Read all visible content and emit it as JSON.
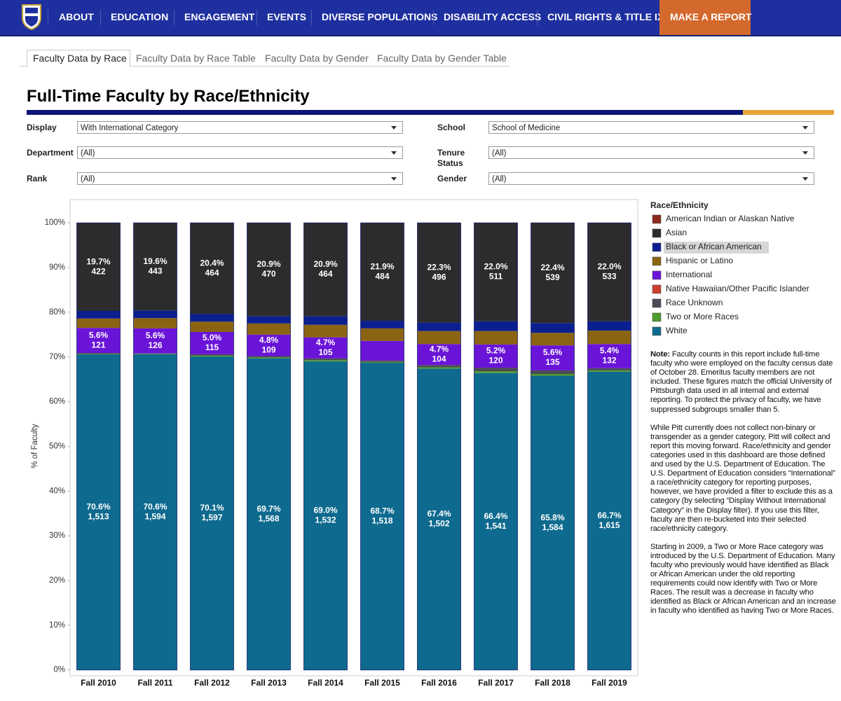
{
  "nav": {
    "items": [
      "ABOUT",
      "EDUCATION",
      "ENGAGEMENT",
      "EVENTS",
      "DIVERSE POPULATIONS",
      "DISABILITY ACCESS",
      "CIVIL RIGHTS & TITLE IX"
    ],
    "cta": "MAKE A REPORT"
  },
  "tabs": [
    "Faculty Data by Race",
    "Faculty Data by Race Table",
    "Faculty Data by Gender",
    "Faculty Data by Gender Table"
  ],
  "header": {
    "title": "Full-Time Faculty by Race/Ethnicity"
  },
  "filters": [
    {
      "label": "Display",
      "value": "With International Category"
    },
    {
      "label": "School",
      "value": "School of Medicine"
    },
    {
      "label": "Department",
      "value": "(All)"
    },
    {
      "label": "Tenure Status",
      "value": "(All)"
    },
    {
      "label": "Rank",
      "value": "(All)"
    },
    {
      "label": "Gender",
      "value": "(All)"
    }
  ],
  "chart_data": {
    "type": "stacked_bar",
    "y_label": "% of Faculty",
    "legend_title": "Race/Ethnicity",
    "categories": [
      "Fall 2010",
      "Fall 2011",
      "Fall 2012",
      "Fall 2013",
      "Fall 2014",
      "Fall 2015",
      "Fall 2016",
      "Fall 2017",
      "Fall 2018",
      "Fall 2019"
    ],
    "ylim": [
      -1.3,
      105.2
    ],
    "yticks": [
      {
        "value": 0,
        "label": "0%"
      },
      {
        "value": 10,
        "label": "10%"
      },
      {
        "value": 20,
        "label": "20%"
      },
      {
        "value": 30,
        "label": "30%"
      },
      {
        "value": 40,
        "label": "40%"
      },
      {
        "value": 50,
        "label": "50%"
      },
      {
        "value": 60,
        "label": "60%"
      },
      {
        "value": 70,
        "label": "70%"
      },
      {
        "value": 80,
        "label": "80%"
      },
      {
        "value": 90,
        "label": "90%"
      },
      {
        "value": 100,
        "label": "100%"
      }
    ],
    "series": [
      {
        "name": "American Indian or Alaskan Native",
        "color": "#8b2a1e",
        "values": [
          0,
          0,
          0,
          0,
          0,
          0,
          0,
          0,
          0,
          0
        ]
      },
      {
        "name": "Asian",
        "color": "#2c2c2e",
        "values": [
          19.7,
          19.6,
          20.4,
          20.9,
          20.9,
          21.9,
          22.3,
          22.0,
          22.4,
          22.0
        ],
        "value_labels": [
          "19.7%",
          "19.6%",
          "20.4%",
          "20.9%",
          "20.9%",
          "21.9%",
          "22.3%",
          "22.0%",
          "22.4%",
          "22.0%"
        ],
        "count_labels": [
          "422",
          "443",
          "464",
          "470",
          "464",
          "484",
          "496",
          "511",
          "539",
          "533"
        ]
      },
      {
        "name": "Black or African American",
        "color": "#0b1f8f",
        "values": [
          1.7,
          1.7,
          1.7,
          1.6,
          1.9,
          1.7,
          1.9,
          2.2,
          2.2,
          2.1
        ]
      },
      {
        "name": "Hispanic or Latino",
        "color": "#8a6412",
        "values": [
          2.1,
          2.3,
          2.3,
          2.5,
          2.8,
          2.8,
          2.9,
          3.0,
          2.8,
          3.0
        ]
      },
      {
        "name": "International",
        "color": "#6a14d8",
        "values": [
          5.6,
          5.6,
          5.0,
          4.8,
          4.7,
          4.4,
          4.7,
          5.2,
          5.6,
          5.4
        ],
        "value_labels": [
          "5.6%",
          "5.6%",
          "5.0%",
          "4.8%",
          "4.7%",
          null,
          "4.7%",
          "5.2%",
          "5.6%",
          "5.4%"
        ],
        "count_labels": [
          "121",
          "126",
          "115",
          "109",
          "105",
          null,
          "104",
          "120",
          "135",
          "132"
        ]
      },
      {
        "name": "Native Hawaiian/Other Pacific Islander",
        "color": "#c8402a",
        "values": [
          0,
          0,
          0,
          0,
          0,
          0,
          0,
          0,
          0,
          0
        ]
      },
      {
        "name": "Race Unknown",
        "color": "#4a4a55",
        "values": [
          0.2,
          0.1,
          0.3,
          0.3,
          0.4,
          0.3,
          0.5,
          0.8,
          0.8,
          0.5
        ]
      },
      {
        "name": "Two or More Races",
        "color": "#4f9a2e",
        "values": [
          0.1,
          0.1,
          0.2,
          0.2,
          0.3,
          0.2,
          0.3,
          0.4,
          0.4,
          0.3
        ]
      },
      {
        "name": "White",
        "color": "#0e6a8e",
        "values": [
          70.6,
          70.6,
          70.1,
          69.7,
          69.0,
          68.7,
          67.4,
          66.4,
          65.8,
          66.7
        ],
        "value_labels": [
          "70.6%",
          "70.6%",
          "70.1%",
          "69.7%",
          "69.0%",
          "68.7%",
          "67.4%",
          "66.4%",
          "65.8%",
          "66.7%"
        ],
        "count_labels": [
          "1,513",
          "1,594",
          "1,597",
          "1,568",
          "1,532",
          "1,518",
          "1,502",
          "1,541",
          "1,584",
          "1,615"
        ]
      }
    ]
  },
  "notes": {
    "note_label": "Note:",
    "paragraphs": [
      "Faculty counts in this report include full-time faculty who were employed on the faculty census date of October 28. Emeritus faculty members are not included. These figures match the official University of Pittsburgh data used in all internal and external reporting. To protect the privacy of faculty, we have suppressed subgroups smaller than 5.",
      "While Pitt currently does not collect non-binary or transgender as a gender category, Pitt will collect and report this moving forward. Race/ethnicity and gender categories used in this dashboard are those defined and used by the U.S. Department of Education. The U.S. Department of Education considers “International” a race/ethnicity category for reporting purposes, however, we have provided a filter to exclude this as a category (by selecting “Display Without International Category” in the Display filter). If you use this filter, faculty are then re-bucketed into their selected race/ethnicity category.",
      "Starting in 2009, a Two or More Race category was introduced by the U.S. Department of Education. Many faculty who previously would have identified as Black or African American under the old reporting requirements could now identify with Two or More Races. The result was a decrease in faculty who identified as Black or African American and an increase in faculty  who identified as having Two or More Races."
    ]
  }
}
